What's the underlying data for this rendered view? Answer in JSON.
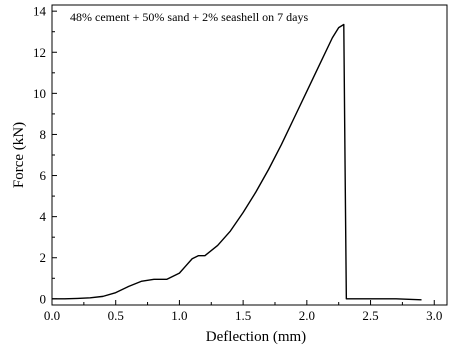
{
  "chart_data": {
    "type": "line",
    "title": "",
    "annotation": "48% cement + 50% sand + 2% seashell on 7 days",
    "xlabel": "Deflection (mm)",
    "ylabel": "Force (kN)",
    "xlim": [
      0.0,
      3.1
    ],
    "ylim": [
      -0.3,
      14.3
    ],
    "xticks": [
      0.0,
      0.5,
      1.0,
      1.5,
      2.0,
      2.5,
      3.0
    ],
    "xtick_labels": [
      "0.0",
      "0.5",
      "1.0",
      "1.5",
      "2.0",
      "2.5",
      "3.0"
    ],
    "yticks": [
      0,
      2,
      4,
      6,
      8,
      10,
      12,
      14
    ],
    "ytick_labels": [
      "0",
      "2",
      "4",
      "6",
      "8",
      "10",
      "12",
      "14"
    ],
    "grid": false,
    "legend": false,
    "series": [
      {
        "color": "#000000",
        "x": [
          0.0,
          0.1,
          0.2,
          0.3,
          0.4,
          0.5,
          0.6,
          0.7,
          0.8,
          0.9,
          1.0,
          1.05,
          1.1,
          1.15,
          1.2,
          1.3,
          1.4,
          1.5,
          1.6,
          1.7,
          1.8,
          1.9,
          2.0,
          2.1,
          2.2,
          2.25,
          2.29,
          2.3,
          2.31,
          2.5,
          2.7,
          2.9
        ],
        "y": [
          0.0,
          0.0,
          0.02,
          0.05,
          0.12,
          0.3,
          0.6,
          0.85,
          0.95,
          0.95,
          1.25,
          1.6,
          1.95,
          2.1,
          2.1,
          2.6,
          3.3,
          4.2,
          5.2,
          6.3,
          7.5,
          8.8,
          10.1,
          11.4,
          12.7,
          13.2,
          13.35,
          6.5,
          0.0,
          0.0,
          0.0,
          -0.05
        ]
      }
    ]
  }
}
